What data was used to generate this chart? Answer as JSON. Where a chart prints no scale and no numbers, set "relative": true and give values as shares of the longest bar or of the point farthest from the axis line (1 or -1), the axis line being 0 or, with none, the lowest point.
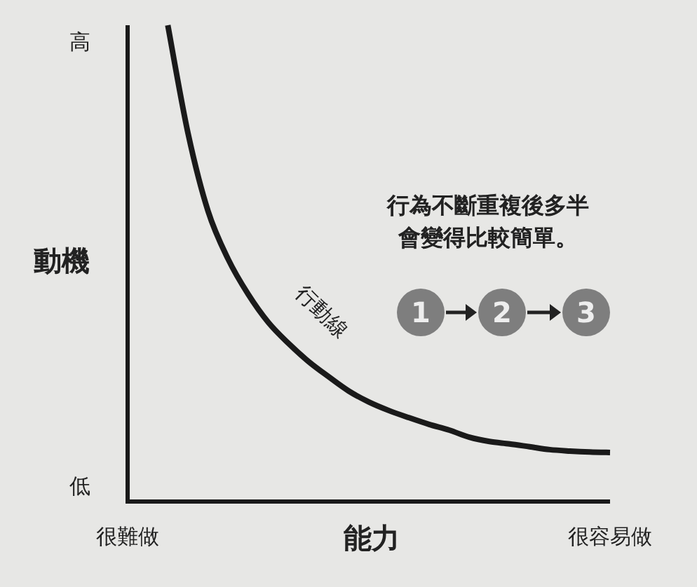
{
  "chart_data": {
    "type": "line",
    "relative": true,
    "xlabel": "能力",
    "ylabel": "動機",
    "categories": [
      "很難做",
      null,
      null,
      null,
      null,
      null,
      null,
      null,
      null,
      null,
      null,
      null,
      null,
      null,
      null,
      null,
      null,
      null,
      null,
      null,
      null,
      null,
      null,
      null,
      "很容易做"
    ],
    "series": [
      {
        "color": "#1a1a1a",
        "values": [
          null,
          null,
          1.0,
          0.774,
          0.61,
          0.509,
          0.435,
          0.376,
          0.332,
          0.294,
          0.262,
          0.232,
          0.209,
          0.191,
          0.176,
          0.162,
          0.15,
          0.135,
          0.126,
          0.121,
          0.115,
          0.109,
          0.106,
          0.104,
          0.103
        ]
      }
    ],
    "annotations": [
      "高",
      "低",
      "行動線",
      "行為不斷重複後多半會變得比較簡單。",
      "1",
      "2",
      "3"
    ],
    "marker": "none",
    "line_style": "solid"
  }
}
